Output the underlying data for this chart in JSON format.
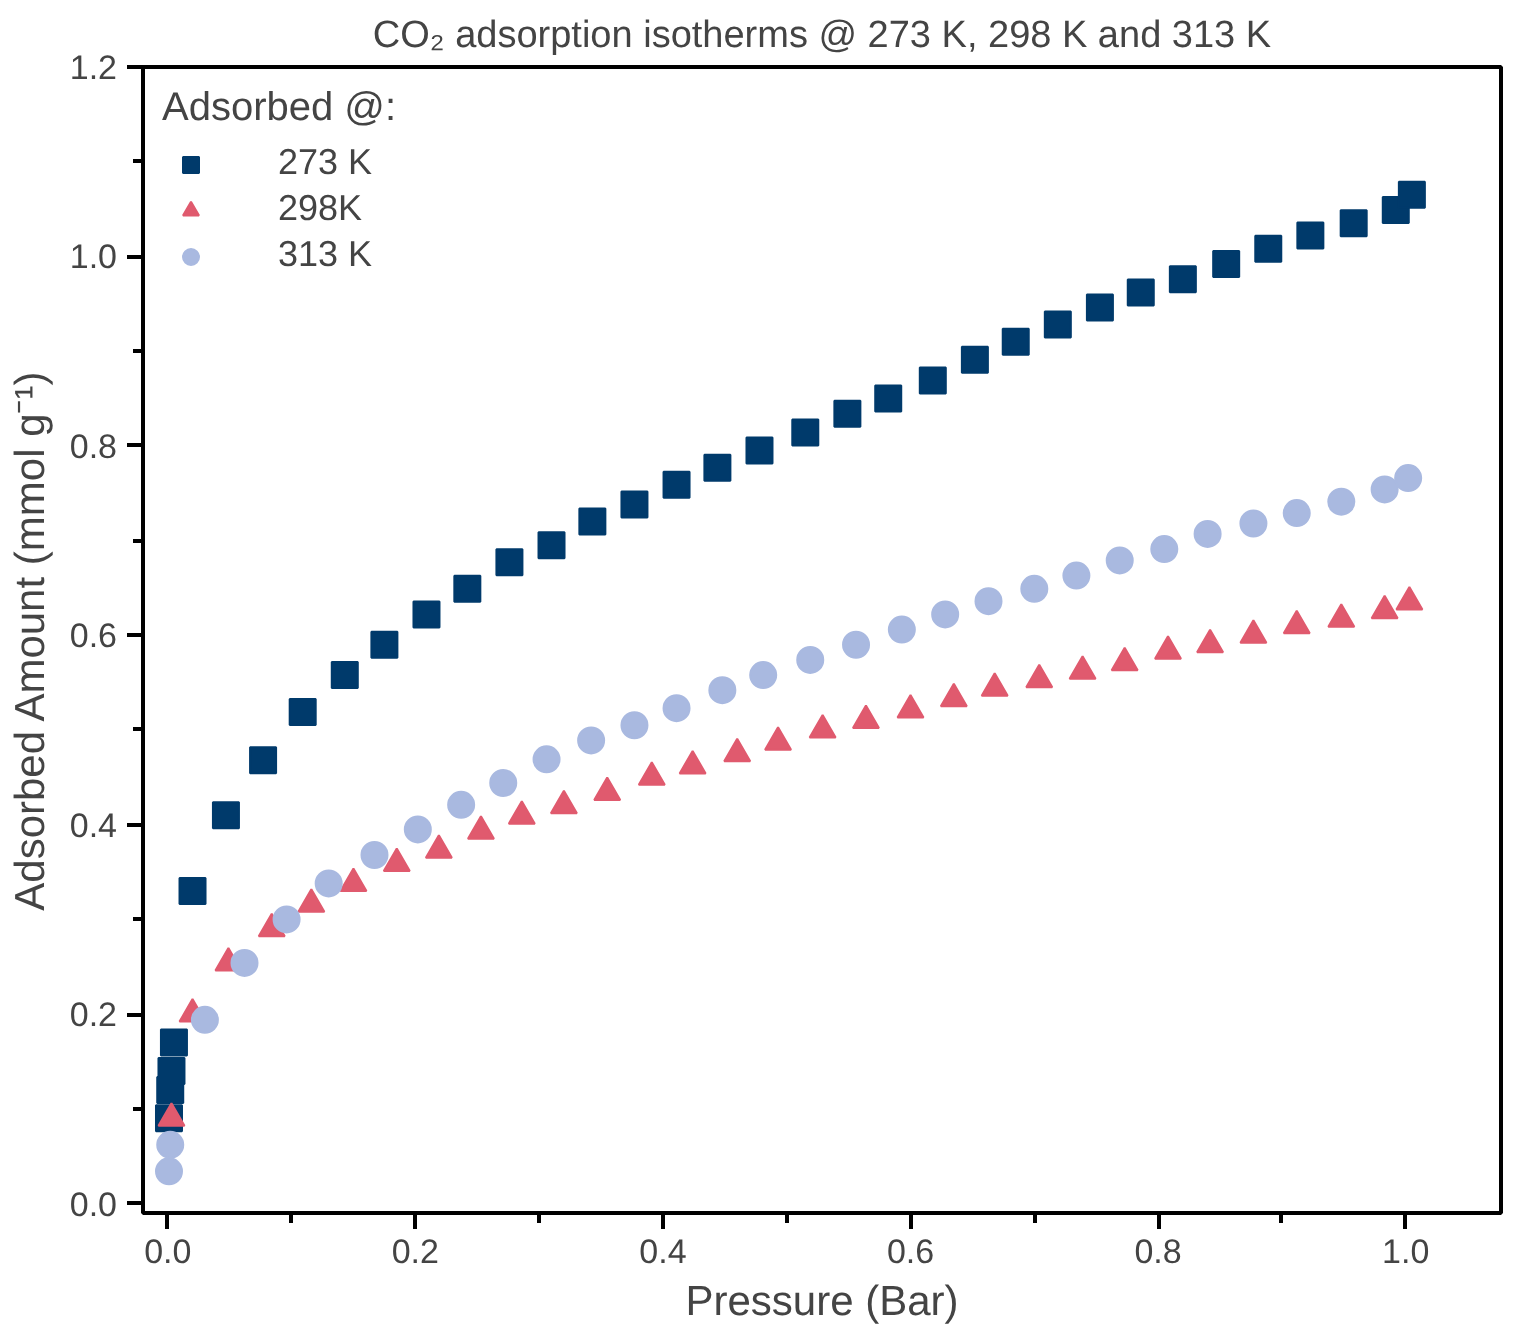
{
  "chart_data": {
    "type": "scatter",
    "title": "CO₂ adsorption isotherms @ 273 K, 298 K and 313 K",
    "xlabel": "Pressure (Bar)",
    "ylabel": "Adsorbed Amount (mmol g⁻¹)",
    "legend_title": "Adsorbed @:",
    "legend": "top left",
    "grid": false,
    "xlim": [
      -0.02,
      1.077
    ],
    "ylim": [
      -0.01,
      1.2
    ],
    "xticks": [
      {
        "value": 0,
        "label": "0.0"
      },
      {
        "value": 0.1,
        "label": null
      },
      {
        "value": 0.2,
        "label": "0.2"
      },
      {
        "value": 0.3,
        "label": null
      },
      {
        "value": 0.4,
        "label": "0.4"
      },
      {
        "value": 0.5,
        "label": null
      },
      {
        "value": 0.6,
        "label": "0.6"
      },
      {
        "value": 0.7,
        "label": null
      },
      {
        "value": 0.8,
        "label": "0.8"
      },
      {
        "value": 0.9,
        "label": null
      },
      {
        "value": 1,
        "label": "1.0"
      }
    ],
    "yticks": [
      {
        "value": 0,
        "label": "0.0"
      },
      {
        "value": 0.1,
        "label": null
      },
      {
        "value": 0.2,
        "label": "0.2"
      },
      {
        "value": 0.3,
        "label": null
      },
      {
        "value": 0.4,
        "label": "0.4"
      },
      {
        "value": 0.5,
        "label": null
      },
      {
        "value": 0.6,
        "label": "0.6"
      },
      {
        "value": 0.7,
        "label": null
      },
      {
        "value": 0.8,
        "label": "0.8"
      },
      {
        "value": 0.9,
        "label": null
      },
      {
        "value": 1,
        "label": "1.0"
      },
      {
        "value": 1.1,
        "label": null
      },
      {
        "value": 1.2,
        "label": "1.2"
      }
    ],
    "series": [
      {
        "name": "273 K",
        "color": "#003a6b",
        "marker": "square",
        "x": [
          0.001,
          0.002,
          0.003,
          0.005,
          0.02,
          0.047,
          0.077,
          0.109,
          0.143,
          0.175,
          0.209,
          0.242,
          0.276,
          0.31,
          0.343,
          0.377,
          0.411,
          0.444,
          0.478,
          0.515,
          0.549,
          0.582,
          0.618,
          0.652,
          0.685,
          0.719,
          0.753,
          0.786,
          0.82,
          0.855,
          0.889,
          0.923,
          0.958,
          0.992,
          1.005
        ],
        "values": [
          0.09,
          0.12,
          0.14,
          0.17,
          0.33,
          0.41,
          0.468,
          0.519,
          0.558,
          0.59,
          0.622,
          0.649,
          0.677,
          0.695,
          0.72,
          0.738,
          0.759,
          0.777,
          0.795,
          0.814,
          0.834,
          0.85,
          0.869,
          0.891,
          0.91,
          0.928,
          0.946,
          0.962,
          0.976,
          0.992,
          1.008,
          1.022,
          1.035,
          1.049,
          1.065
        ]
      },
      {
        "name": "298K",
        "color": "#e05a6e",
        "marker": "triangle",
        "x": [
          0.003,
          0.02,
          0.049,
          0.084,
          0.116,
          0.15,
          0.185,
          0.219,
          0.253,
          0.286,
          0.32,
          0.355,
          0.391,
          0.424,
          0.46,
          0.493,
          0.529,
          0.564,
          0.6,
          0.635,
          0.668,
          0.704,
          0.739,
          0.773,
          0.808,
          0.842,
          0.877,
          0.912,
          0.948,
          0.983,
          1.003
        ],
        "values": [
          0.09,
          0.2,
          0.254,
          0.29,
          0.316,
          0.338,
          0.359,
          0.373,
          0.393,
          0.409,
          0.42,
          0.434,
          0.45,
          0.462,
          0.475,
          0.487,
          0.5,
          0.51,
          0.521,
          0.533,
          0.544,
          0.553,
          0.562,
          0.571,
          0.583,
          0.59,
          0.6,
          0.61,
          0.617,
          0.626,
          0.635
        ]
      },
      {
        "name": "313 K",
        "color": "#a9b9e0",
        "marker": "circle",
        "x": [
          0.001,
          0.002,
          0.03,
          0.062,
          0.096,
          0.13,
          0.167,
          0.202,
          0.237,
          0.271,
          0.306,
          0.342,
          0.377,
          0.411,
          0.448,
          0.481,
          0.519,
          0.556,
          0.593,
          0.628,
          0.663,
          0.7,
          0.734,
          0.769,
          0.805,
          0.84,
          0.877,
          0.912,
          0.948,
          0.983,
          1.002
        ],
        "values": [
          0.034,
          0.062,
          0.194,
          0.254,
          0.3,
          0.338,
          0.368,
          0.395,
          0.421,
          0.444,
          0.469,
          0.489,
          0.505,
          0.523,
          0.542,
          0.558,
          0.574,
          0.59,
          0.606,
          0.622,
          0.636,
          0.649,
          0.663,
          0.679,
          0.691,
          0.707,
          0.718,
          0.729,
          0.741,
          0.754,
          0.766
        ]
      }
    ]
  }
}
